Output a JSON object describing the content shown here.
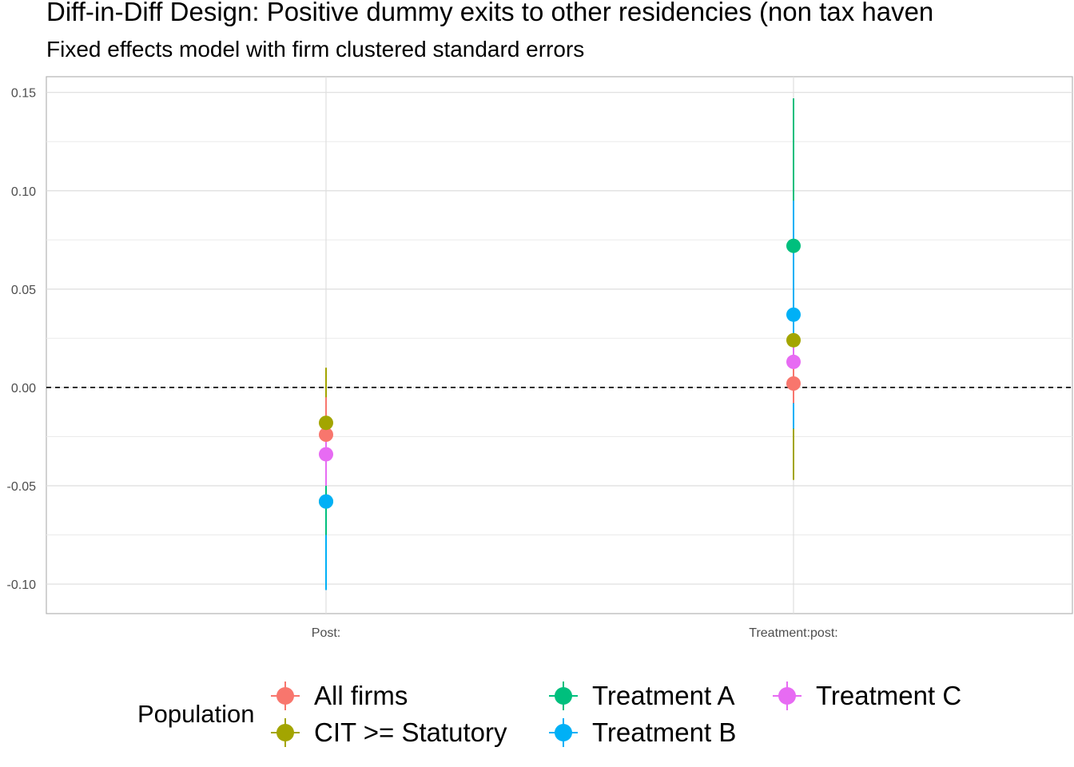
{
  "chart_data": {
    "type": "scatter",
    "title": "Diff-in-Diff Design: Positive dummy exits to other residencies (non tax haven",
    "subtitle": "Fixed effects model with firm clustered standard errors",
    "xlabel": "",
    "ylabel": "",
    "categories": [
      "Post:",
      "Treatment:post:"
    ],
    "ylim": [
      -0.115,
      0.158
    ],
    "yticks": [
      "0.15",
      "0.10",
      "0.05",
      "0.00",
      "-0.05",
      "-0.10"
    ],
    "reference_line": 0,
    "grid": true,
    "legend_title": "Population",
    "legend_position": "bottom",
    "series": [
      {
        "name": "All firms",
        "color": "#F8766D",
        "estimates": [
          -0.024,
          0.002
        ],
        "ci_low": [
          -0.043,
          -0.008
        ],
        "ci_high": [
          -0.005,
          0.012
        ]
      },
      {
        "name": "CIT >= Statutory",
        "color": "#A3A500",
        "estimates": [
          -0.018,
          0.024
        ],
        "ci_low": [
          -0.045,
          -0.047
        ],
        "ci_high": [
          0.01,
          0.094
        ]
      },
      {
        "name": "Treatment A",
        "color": "#00BF7D",
        "estimates": [
          -0.058,
          0.072
        ],
        "ci_low": [
          -0.075,
          -0.003
        ],
        "ci_high": [
          -0.041,
          0.147
        ]
      },
      {
        "name": "Treatment B",
        "color": "#00B0F6",
        "estimates": [
          -0.058,
          0.037
        ],
        "ci_low": [
          -0.103,
          -0.021
        ],
        "ci_high": [
          -0.013,
          0.095
        ]
      },
      {
        "name": "Treatment C",
        "color": "#E76BF3",
        "estimates": [
          -0.034,
          0.013
        ],
        "ci_low": [
          -0.05,
          0.001
        ],
        "ci_high": [
          -0.018,
          0.025
        ]
      }
    ]
  }
}
